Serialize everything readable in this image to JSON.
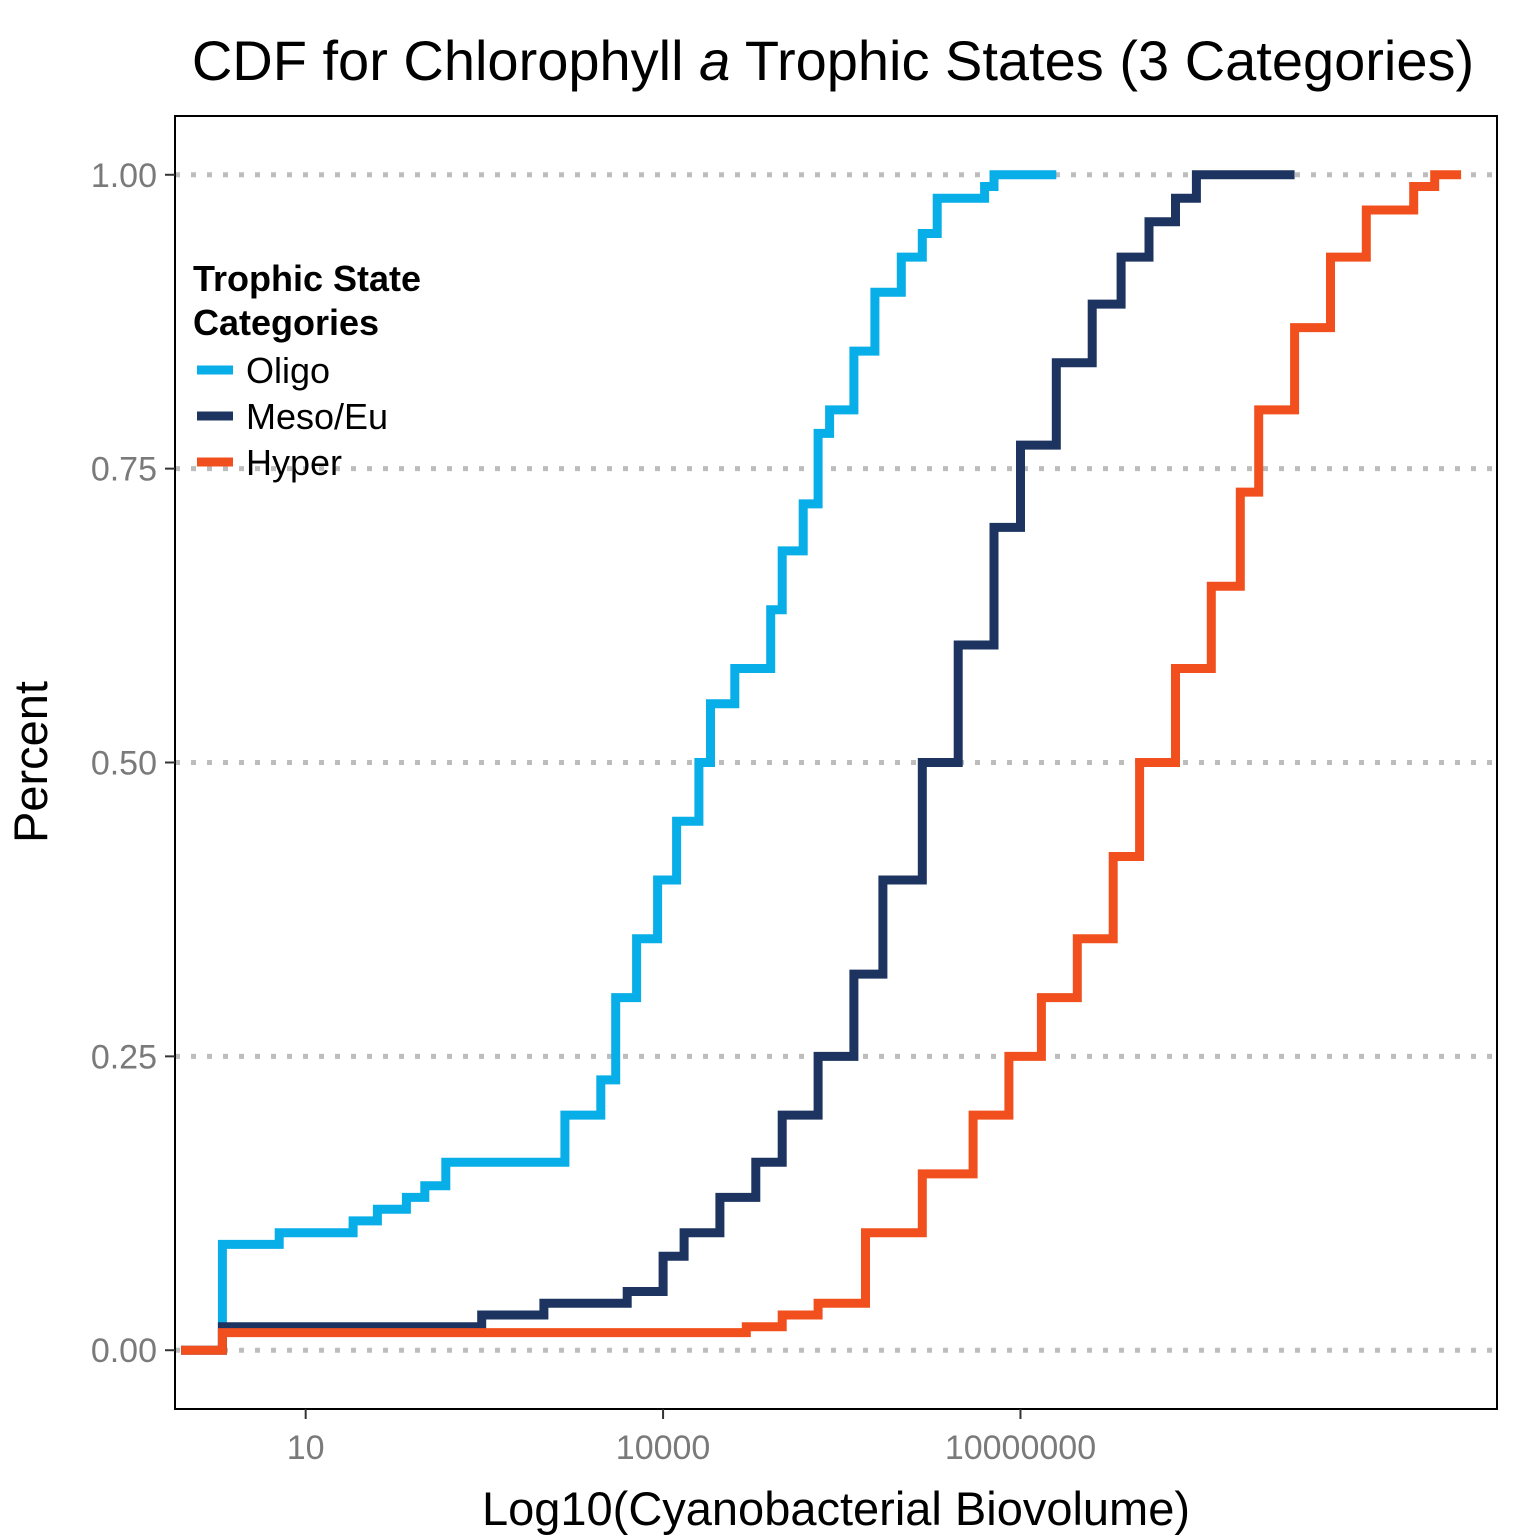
{
  "chart_data": {
    "type": "line",
    "step": true,
    "title": {
      "before": "CDF for Chlorophyll ",
      "italic": "a",
      "after": " Trophic States (3 Categories)"
    },
    "xlabel": "Log10(Cyanobacterial Biovolume)",
    "ylabel": "Percent",
    "x_scale": "log10",
    "xlim": [
      0.8,
      100000000000
    ],
    "ylim": [
      -0.05,
      1.05
    ],
    "x_ticks": [
      10,
      10000,
      10000000
    ],
    "x_tick_labels": [
      "10",
      "10000",
      "10000000"
    ],
    "y_ticks": [
      0,
      0.25,
      0.5,
      0.75,
      1.0
    ],
    "y_tick_labels": [
      "0.00",
      "0.25",
      "0.50",
      "0.75",
      "1.00"
    ],
    "grid": "horizontal dotted major lines",
    "legend": {
      "title_lines": [
        "Trophic State",
        "Categories"
      ],
      "placement": "top-left inside plot"
    },
    "series": [
      {
        "name": "Oligo",
        "color": "#07aee7",
        "points": [
          [
            2,
            0.0
          ],
          [
            2,
            0.09
          ],
          [
            5,
            0.09
          ],
          [
            6,
            0.1
          ],
          [
            15,
            0.1
          ],
          [
            25,
            0.11
          ],
          [
            40,
            0.12
          ],
          [
            70,
            0.13
          ],
          [
            100,
            0.14
          ],
          [
            150,
            0.16
          ],
          [
            1000,
            0.16
          ],
          [
            1500,
            0.2
          ],
          [
            3000,
            0.23
          ],
          [
            4000,
            0.3
          ],
          [
            6000,
            0.35
          ],
          [
            9000,
            0.4
          ],
          [
            13000,
            0.45
          ],
          [
            20000,
            0.5
          ],
          [
            25000,
            0.55
          ],
          [
            40000,
            0.58
          ],
          [
            80000,
            0.63
          ],
          [
            100000,
            0.68
          ],
          [
            150000,
            0.72
          ],
          [
            200000,
            0.78
          ],
          [
            250000,
            0.8
          ],
          [
            400000,
            0.85
          ],
          [
            600000,
            0.9
          ],
          [
            1000000,
            0.93
          ],
          [
            1500000,
            0.95
          ],
          [
            2000000,
            0.98
          ],
          [
            3000000,
            0.98
          ],
          [
            5000000,
            0.99
          ],
          [
            6000000,
            1.0
          ],
          [
            20000000,
            1.0
          ]
        ]
      },
      {
        "name": "Meso/Eu",
        "color": "#1d3461",
        "points": [
          [
            0.9,
            0.0
          ],
          [
            2,
            0.0
          ],
          [
            2,
            0.02
          ],
          [
            10,
            0.02
          ],
          [
            200,
            0.02
          ],
          [
            300,
            0.03
          ],
          [
            1000,
            0.04
          ],
          [
            2000,
            0.04
          ],
          [
            5000,
            0.05
          ],
          [
            10000,
            0.08
          ],
          [
            15000,
            0.1
          ],
          [
            30000,
            0.13
          ],
          [
            60000,
            0.16
          ],
          [
            100000,
            0.2
          ],
          [
            200000,
            0.25
          ],
          [
            400000,
            0.32
          ],
          [
            700000,
            0.4
          ],
          [
            1500000,
            0.5
          ],
          [
            3000000,
            0.6
          ],
          [
            6000000,
            0.7
          ],
          [
            10000000,
            0.77
          ],
          [
            20000000,
            0.84
          ],
          [
            40000000,
            0.89
          ],
          [
            70000000,
            0.93
          ],
          [
            120000000,
            0.96
          ],
          [
            200000000,
            0.98
          ],
          [
            300000000,
            1.0
          ],
          [
            2000000000,
            1.0
          ]
        ]
      },
      {
        "name": "Hyper",
        "color": "#f1501e",
        "points": [
          [
            0.9,
            0.0
          ],
          [
            2,
            0.0
          ],
          [
            2,
            0.015
          ],
          [
            30000,
            0.015
          ],
          [
            50000,
            0.02
          ],
          [
            100000,
            0.03
          ],
          [
            200000,
            0.04
          ],
          [
            500000,
            0.1
          ],
          [
            1500000,
            0.15
          ],
          [
            4000000,
            0.2
          ],
          [
            8000000,
            0.25
          ],
          [
            15000000,
            0.3
          ],
          [
            30000000,
            0.35
          ],
          [
            60000000,
            0.42
          ],
          [
            100000000,
            0.5
          ],
          [
            200000000,
            0.58
          ],
          [
            400000000,
            0.65
          ],
          [
            700000000,
            0.73
          ],
          [
            1000000000,
            0.8
          ],
          [
            2000000000,
            0.87
          ],
          [
            4000000000,
            0.93
          ],
          [
            8000000000,
            0.97
          ],
          [
            20000000000,
            0.99
          ],
          [
            30000000000,
            1.0
          ],
          [
            50000000000,
            1.0
          ]
        ]
      }
    ]
  }
}
